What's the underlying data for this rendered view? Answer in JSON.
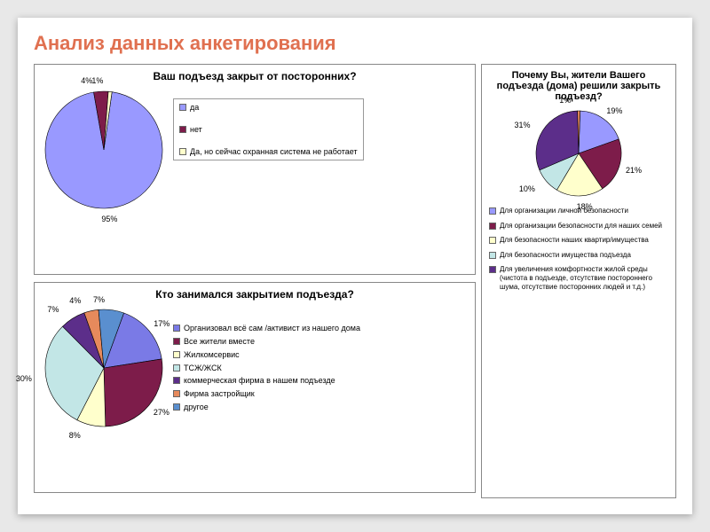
{
  "title": "Анализ данных анкетирования",
  "colors": {
    "title": "#e07050",
    "background": "#ffffff",
    "border": "#888888",
    "slide_shadow": "#e8e8e8"
  },
  "chart1": {
    "type": "pie",
    "title": "Ваш подъезд закрыт от посторонних?",
    "title_fontsize": 12,
    "radius": 66,
    "slices": [
      {
        "value": 95,
        "label": "да",
        "color": "#9999ff",
        "pct_label": "95%"
      },
      {
        "value": 4,
        "label": "нет",
        "color": "#7d1c4a",
        "pct_label": "4%"
      },
      {
        "value": 1,
        "label": "Да, но сейчас охранная система не работает",
        "color": "#ffffcc",
        "pct_label": "1%"
      }
    ],
    "legend_boxed": true,
    "legend_fontsize": 9
  },
  "chart2": {
    "type": "pie",
    "title": "Кто занимался закрытием подъезда?",
    "title_fontsize": 12,
    "radius": 66,
    "slices": [
      {
        "value": 17,
        "label": "Организовал всё сам /активист из нашего дома",
        "color": "#7a7ae6",
        "pct_label": "17%"
      },
      {
        "value": 27,
        "label": "Все жители вместе",
        "color": "#7d1c4a",
        "pct_label": "27%"
      },
      {
        "value": 8,
        "label": "Жилкомсервис",
        "color": "#ffffcc",
        "pct_label": "8%"
      },
      {
        "value": 30,
        "label": "ТСЖ/ЖСК",
        "color": "#c2e6e6",
        "pct_label": "30%"
      },
      {
        "value": 7,
        "label": "коммерческая фирма в нашем подъезде",
        "color": "#5c2e8a",
        "pct_label": "7%"
      },
      {
        "value": 4,
        "label": "Фирма застройщик",
        "color": "#e68a5c",
        "pct_label": "4%"
      },
      {
        "value": 7,
        "label": "другое",
        "color": "#5a8fcf",
        "pct_label": "7%"
      }
    ],
    "legend_boxed": false,
    "legend_fontsize": 9
  },
  "chart3": {
    "type": "pie",
    "title": "Почему Вы, жители Вашего подъезда (дома) решили закрыть подъезд?",
    "title_fontsize": 11,
    "radius": 48,
    "slices": [
      {
        "value": 19,
        "label": "Для организации личной безопасности",
        "color": "#9999ff",
        "pct_label": "19%"
      },
      {
        "value": 21,
        "label": "Для организации безопасности для наших семей",
        "color": "#7d1c4a",
        "pct_label": "21%"
      },
      {
        "value": 18,
        "label": "Для безопасности наших квартир/имущества",
        "color": "#ffffcc",
        "pct_label": "18%"
      },
      {
        "value": 10,
        "label": "Для безопасности имущества подъезда",
        "color": "#c2e6e6",
        "pct_label": "10%"
      },
      {
        "value": 31,
        "label": "Для увеличения комфортности жилой среды (чистота в подъезде, отсутствие постороннего   шума, отсутствие посторонних людей и т.д.)",
        "color": "#5c2e8a",
        "pct_label": "31%"
      },
      {
        "value": 1,
        "label": "",
        "color": "#e68a5c",
        "pct_label": "1%"
      }
    ],
    "legend_boxed": false,
    "legend_fontsize": 8
  }
}
